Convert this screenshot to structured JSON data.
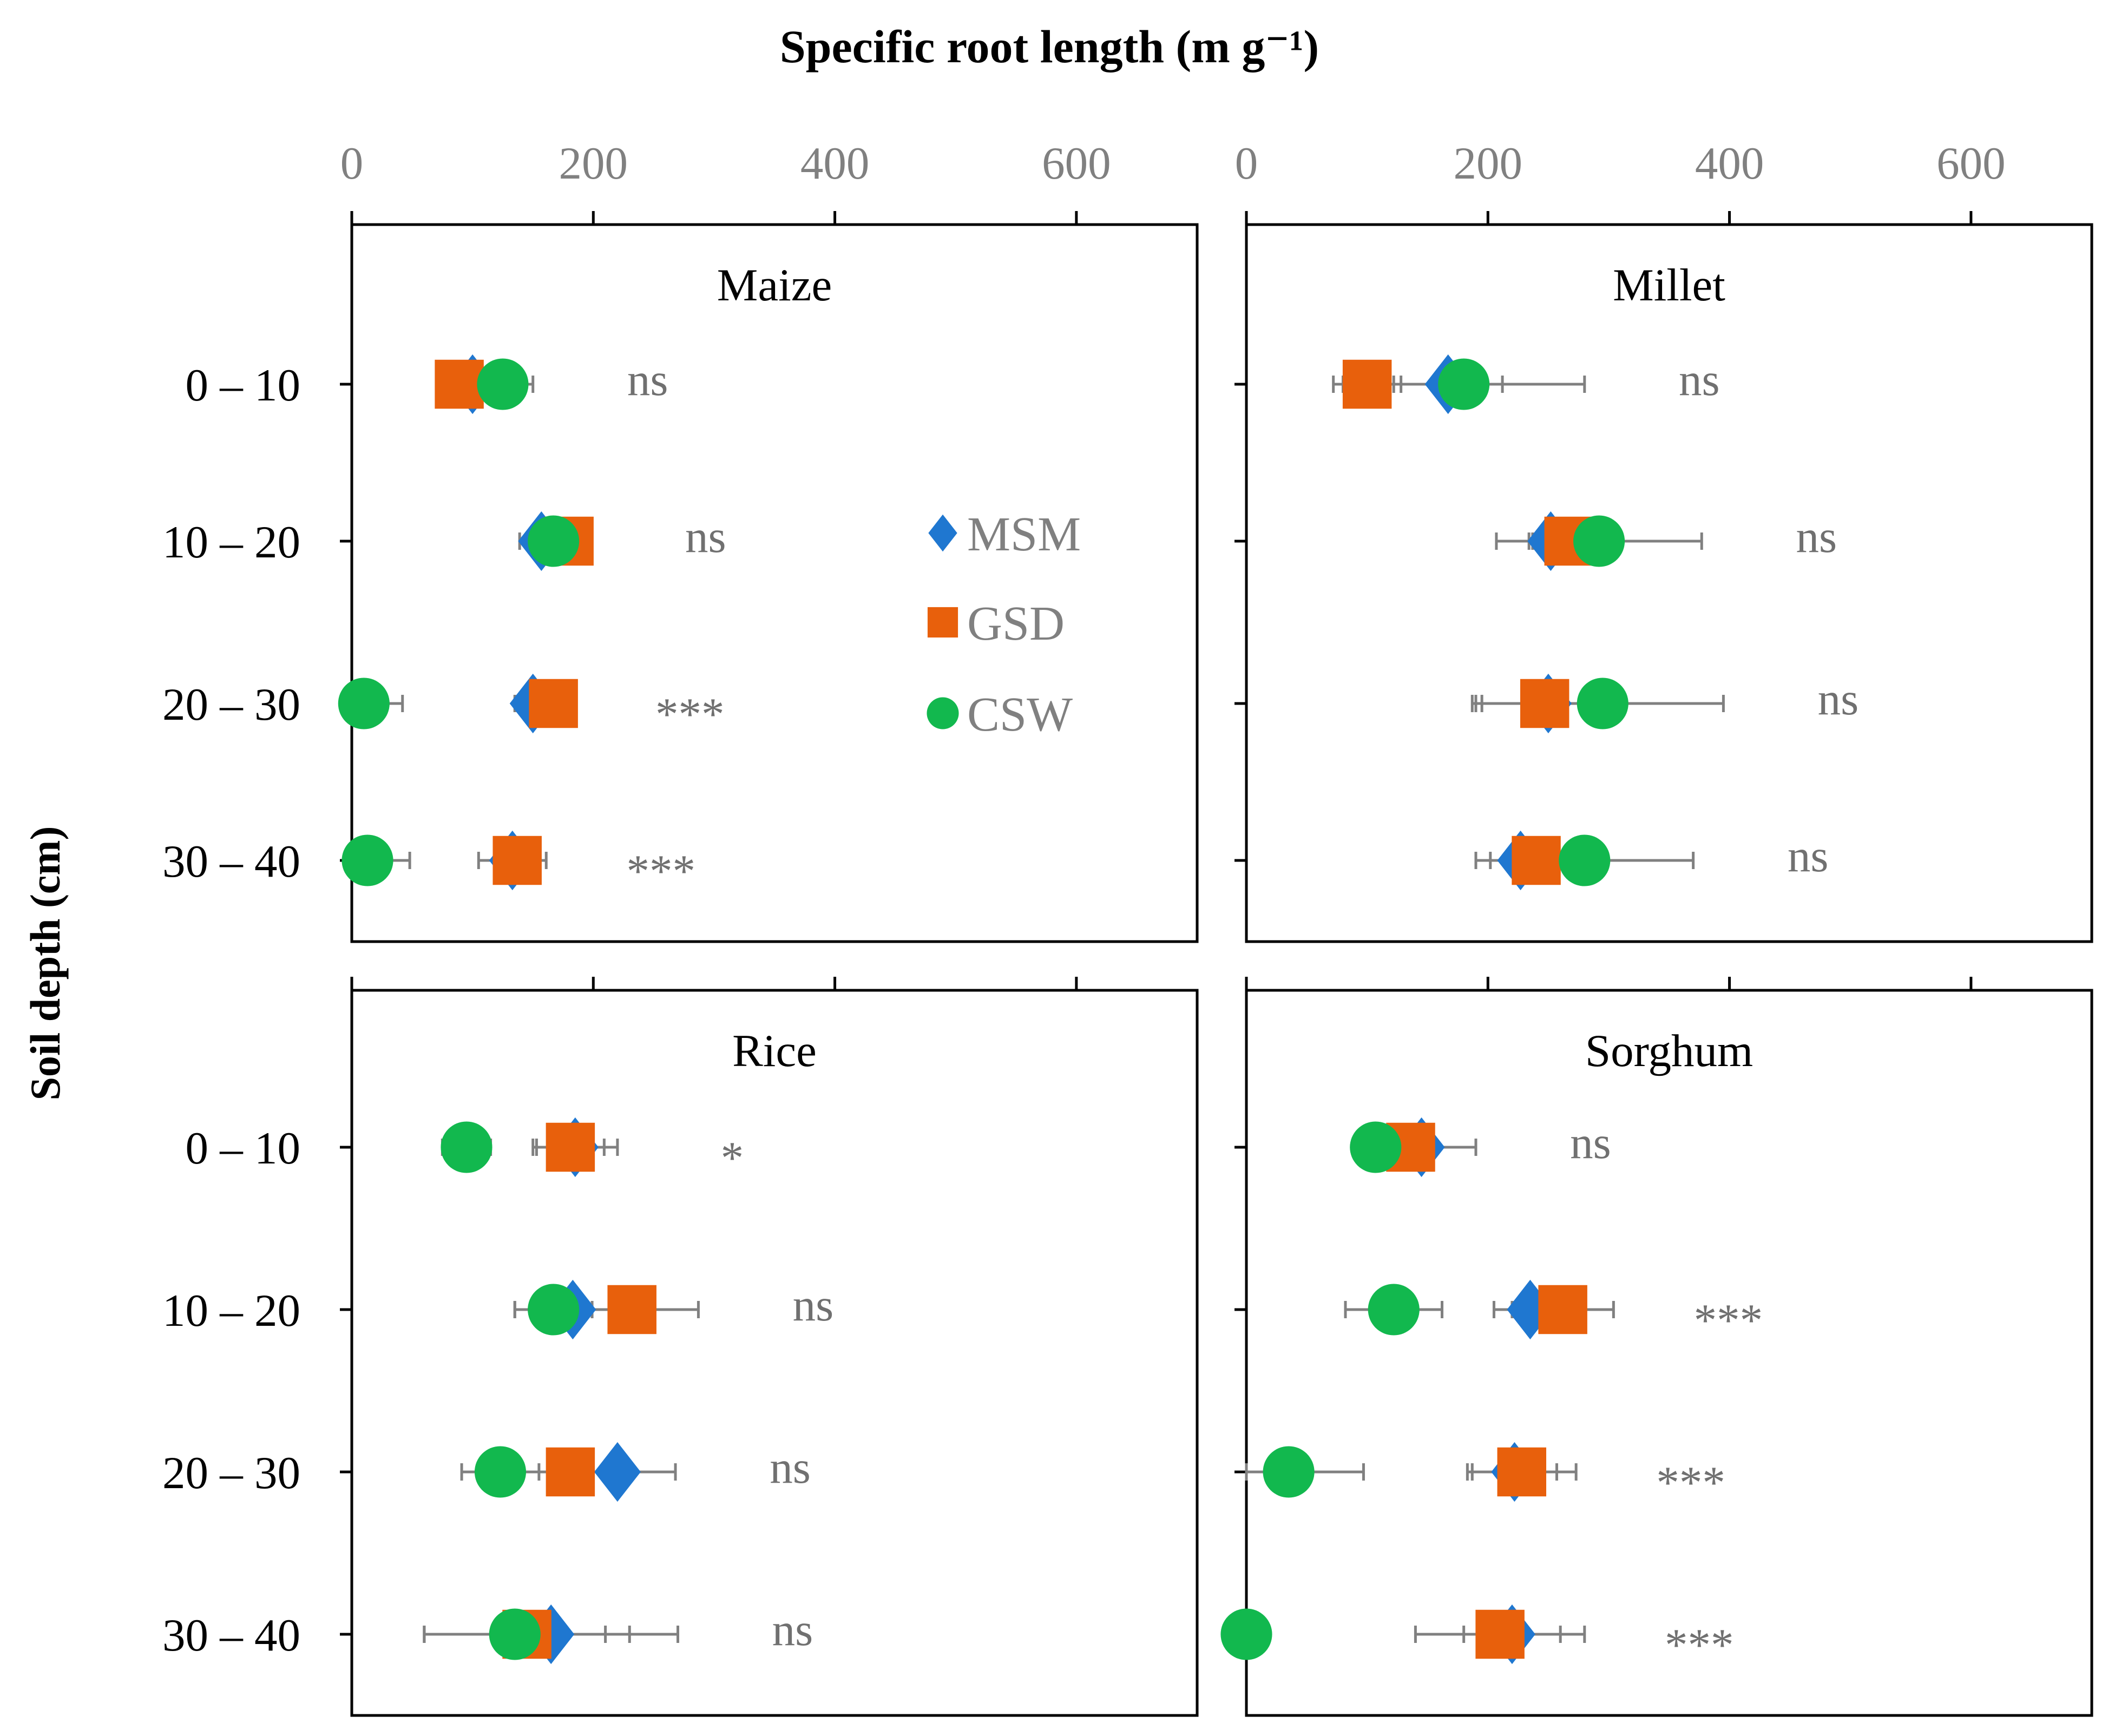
{
  "chart_data": {
    "type": "scatter",
    "title": "Specific root length (m g⁻¹)",
    "xlabel": "Specific root length (m g⁻¹)",
    "ylabel": "Soil depth (cm)",
    "xlim": [
      0,
      700
    ],
    "xticks": [
      0,
      200,
      400,
      600
    ],
    "xtick_labels": [
      "0",
      "200",
      "400",
      "600"
    ],
    "depths": [
      "0 – 10",
      "10 – 20",
      "20 – 30",
      "30 – 40"
    ],
    "legend": {
      "placement": "inside Maize panel, right",
      "entries": [
        {
          "name": "MSM",
          "color": "#1F77D0",
          "marker": "diamond"
        },
        {
          "name": "GSD",
          "color": "#E8600C",
          "marker": "square"
        },
        {
          "name": "CSW",
          "color": "#12B84E",
          "marker": "circle"
        }
      ]
    },
    "panels": [
      {
        "crop": "Maize",
        "significance": [
          "ns",
          "ns",
          "***",
          "***"
        ],
        "series": {
          "MSM": {
            "values": [
              100,
              157,
              150,
              133
            ],
            "errors": [
              25,
              18,
              15,
              28
            ]
          },
          "GSD": {
            "values": [
              89,
              180,
              167,
              137
            ],
            "errors": [
              10,
              18,
              18,
              18
            ]
          },
          "CSW": {
            "values": [
              125,
              167,
              10,
              13
            ],
            "errors": [
              25,
              10,
              32,
              35
            ]
          }
        }
      },
      {
        "crop": "Millet",
        "significance": [
          "ns",
          "ns",
          "ns",
          "ns"
        ],
        "series": {
          "MSM": {
            "values": [
              167,
              252,
              250,
              227
            ],
            "errors": [
              45,
              18,
              60,
              25
            ]
          },
          "GSD": {
            "values": [
              100,
              267,
              247,
              240
            ],
            "errors": [
              28,
              30,
              60,
              20
            ]
          },
          "CSW": {
            "values": [
              180,
              292,
              295,
              280
            ],
            "errors": [
              100,
              85,
              100,
              90
            ]
          }
        }
      },
      {
        "crop": "Rice",
        "significance": [
          "*",
          "ns",
          "ns",
          "ns"
        ],
        "series": {
          "MSM": {
            "values": [
              185,
              183,
              220,
              165
            ],
            "errors": [
              35,
              48,
              48,
              105
            ]
          },
          "GSD": {
            "values": [
              181,
              232,
              181,
              145
            ],
            "errors": [
              28,
              55,
              45,
              85
            ]
          },
          "CSW": {
            "values": [
              95,
              167,
              123,
              135
            ],
            "errors": [
              20,
              32,
              32,
              75
            ]
          }
        }
      },
      {
        "crop": "Sorghum",
        "significance": [
          "ns",
          "***",
          "***",
          "***"
        ],
        "series": {
          "MSM": {
            "values": [
              145,
              235,
              222,
              220
            ],
            "errors": [
              45,
              30,
              35,
              40
            ]
          },
          "GSD": {
            "values": [
              136,
              262,
              228,
              210
            ],
            "errors": [
              10,
              42,
              45,
              70
            ]
          },
          "CSW": {
            "values": [
              107,
              122,
              35,
              0
            ],
            "errors": [
              18,
              40,
              62,
              10
            ]
          }
        }
      }
    ]
  }
}
